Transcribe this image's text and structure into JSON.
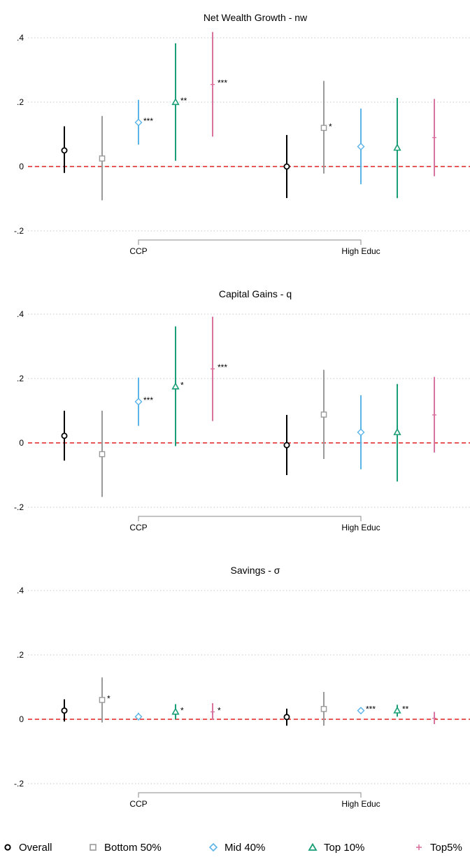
{
  "chart_data": [
    {
      "type": "scatter",
      "title": "Net Wealth Growth - nw",
      "ylim": [
        -0.2,
        0.4
      ],
      "yticks": [
        -0.2,
        0,
        0.2,
        0.4
      ],
      "ytick_labels": [
        "-.2",
        "0",
        ".2",
        ".4"
      ],
      "groups": [
        "CCP",
        "High Educ"
      ],
      "grid": true,
      "reference_line": 0,
      "series": [
        {
          "name": "Overall",
          "points": [
            {
              "group": "CCP",
              "estimate": 0.05,
              "ci": [
                -0.02,
                0.125
              ],
              "stars": ""
            },
            {
              "group": "High Educ",
              "estimate": 0.0,
              "ci": [
                -0.098,
                0.098
              ],
              "stars": ""
            }
          ]
        },
        {
          "name": "Bottom 50%",
          "points": [
            {
              "group": "CCP",
              "estimate": 0.025,
              "ci": [
                -0.105,
                0.157
              ],
              "stars": ""
            },
            {
              "group": "High Educ",
              "estimate": 0.12,
              "ci": [
                -0.022,
                0.266
              ],
              "stars": "*"
            }
          ]
        },
        {
          "name": "Mid 40%",
          "points": [
            {
              "group": "CCP",
              "estimate": 0.137,
              "ci": [
                0.068,
                0.207
              ],
              "stars": "***"
            },
            {
              "group": "High Educ",
              "estimate": 0.062,
              "ci": [
                -0.055,
                0.18
              ],
              "stars": ""
            }
          ]
        },
        {
          "name": "Top 10%",
          "points": [
            {
              "group": "CCP",
              "estimate": 0.2,
              "ci": [
                0.018,
                0.383
              ],
              "stars": "**"
            },
            {
              "group": "High Educ",
              "estimate": 0.058,
              "ci": [
                -0.098,
                0.213
              ],
              "stars": ""
            }
          ]
        },
        {
          "name": "Top5%",
          "points": [
            {
              "group": "CCP",
              "estimate": 0.255,
              "ci": [
                0.093,
                0.418
              ],
              "stars": "***"
            },
            {
              "group": "High Educ",
              "estimate": 0.09,
              "ci": [
                -0.03,
                0.21
              ],
              "stars": ""
            }
          ]
        }
      ]
    },
    {
      "type": "scatter",
      "title": "Capital Gains - q",
      "ylim": [
        -0.2,
        0.4
      ],
      "yticks": [
        -0.2,
        0,
        0.2,
        0.4
      ],
      "ytick_labels": [
        "-.2",
        "0",
        ".2",
        ".4"
      ],
      "groups": [
        "CCP",
        "High Educ"
      ],
      "grid": true,
      "reference_line": 0,
      "series": [
        {
          "name": "Overall",
          "points": [
            {
              "group": "CCP",
              "estimate": 0.022,
              "ci": [
                -0.055,
                0.1
              ],
              "stars": ""
            },
            {
              "group": "High Educ",
              "estimate": -0.007,
              "ci": [
                -0.1,
                0.087
              ],
              "stars": ""
            }
          ]
        },
        {
          "name": "Bottom 50%",
          "points": [
            {
              "group": "CCP",
              "estimate": -0.035,
              "ci": [
                -0.168,
                0.1
              ],
              "stars": ""
            },
            {
              "group": "High Educ",
              "estimate": 0.088,
              "ci": [
                -0.05,
                0.227
              ],
              "stars": ""
            }
          ]
        },
        {
          "name": "Mid 40%",
          "points": [
            {
              "group": "CCP",
              "estimate": 0.128,
              "ci": [
                0.053,
                0.203
              ],
              "stars": "***"
            },
            {
              "group": "High Educ",
              "estimate": 0.033,
              "ci": [
                -0.082,
                0.148
              ],
              "stars": ""
            }
          ]
        },
        {
          "name": "Top 10%",
          "points": [
            {
              "group": "CCP",
              "estimate": 0.175,
              "ci": [
                -0.01,
                0.362
              ],
              "stars": "*"
            },
            {
              "group": "High Educ",
              "estimate": 0.033,
              "ci": [
                -0.12,
                0.183
              ],
              "stars": ""
            }
          ]
        },
        {
          "name": "Top5%",
          "points": [
            {
              "group": "CCP",
              "estimate": 0.23,
              "ci": [
                0.068,
                0.392
              ],
              "stars": "***"
            },
            {
              "group": "High Educ",
              "estimate": 0.087,
              "ci": [
                -0.03,
                0.205
              ],
              "stars": ""
            }
          ]
        }
      ]
    },
    {
      "type": "scatter",
      "title": "Savings - σ",
      "ylim": [
        -0.2,
        0.4
      ],
      "yticks": [
        -0.2,
        0,
        0.2,
        0.4
      ],
      "ytick_labels": [
        "-.2",
        "0",
        ".2",
        ".4"
      ],
      "groups": [
        "CCP",
        "High Educ"
      ],
      "grid": true,
      "reference_line": 0,
      "series": [
        {
          "name": "Overall",
          "points": [
            {
              "group": "CCP",
              "estimate": 0.027,
              "ci": [
                -0.007,
                0.062
              ],
              "stars": ""
            },
            {
              "group": "High Educ",
              "estimate": 0.007,
              "ci": [
                -0.02,
                0.033
              ],
              "stars": ""
            }
          ]
        },
        {
          "name": "Bottom 50%",
          "points": [
            {
              "group": "CCP",
              "estimate": 0.06,
              "ci": [
                -0.01,
                0.13
              ],
              "stars": "*"
            },
            {
              "group": "High Educ",
              "estimate": 0.032,
              "ci": [
                -0.02,
                0.085
              ],
              "stars": ""
            }
          ]
        },
        {
          "name": "Mid 40%",
          "points": [
            {
              "group": "CCP",
              "estimate": 0.008,
              "ci": [
                -0.003,
                0.02
              ],
              "stars": ""
            },
            {
              "group": "High Educ",
              "estimate": 0.027,
              "ci": [
                0.017,
                0.037
              ],
              "stars": "***"
            }
          ]
        },
        {
          "name": "Top 10%",
          "points": [
            {
              "group": "CCP",
              "estimate": 0.023,
              "ci": [
                0.0,
                0.047
              ],
              "stars": "*"
            },
            {
              "group": "High Educ",
              "estimate": 0.027,
              "ci": [
                0.008,
                0.045
              ],
              "stars": "**"
            }
          ]
        },
        {
          "name": "Top5%",
          "points": [
            {
              "group": "CCP",
              "estimate": 0.023,
              "ci": [
                -0.002,
                0.05
              ],
              "stars": "*"
            },
            {
              "group": "High Educ",
              "estimate": 0.003,
              "ci": [
                -0.015,
                0.023
              ],
              "stars": ""
            }
          ]
        }
      ]
    }
  ],
  "legend": [
    {
      "label": "Overall",
      "marker": "circle",
      "color": "#000000"
    },
    {
      "label": "Bottom 50%",
      "marker": "square",
      "color": "#9a9a9a"
    },
    {
      "label": "Mid 40%",
      "marker": "diamond",
      "color": "#5ab4e8"
    },
    {
      "label": "Top 10%",
      "marker": "triangle",
      "color": "#1a9e77"
    },
    {
      "label": "Top5%",
      "marker": "plus",
      "color": "#d9739f"
    }
  ],
  "colors": {
    "reference_line": "#e02020",
    "grid": "#c8c8c8",
    "axis": "#888888"
  }
}
